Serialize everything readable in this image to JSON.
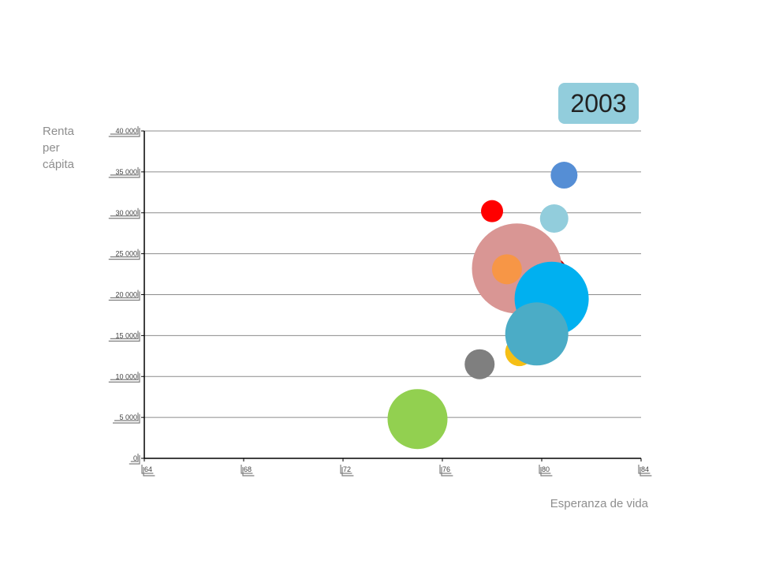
{
  "chart_data": {
    "type": "scatter",
    "year_label": "2003",
    "xlabel": "Esperanza de vida",
    "ylabel": "Renta per cápita",
    "xlim": [
      64,
      84
    ],
    "ylim": [
      0,
      40000
    ],
    "x_ticks": [
      64,
      68,
      72,
      76,
      80,
      84
    ],
    "x_tick_labels": [
      "64",
      "68",
      "72",
      "76",
      "80",
      "84"
    ],
    "y_ticks": [
      0,
      5000,
      10000,
      15000,
      20000,
      25000,
      30000,
      35000,
      40000
    ],
    "y_tick_labels": [
      "0",
      "5 000",
      "10 000",
      "15 000",
      "20 000",
      "25 000",
      "30 000",
      "35 000",
      "40 000"
    ],
    "grid": "horizontal",
    "badge_color": "#92cddc",
    "points": [
      {
        "x": 75.0,
        "y": 4800,
        "size": 38,
        "color": "#92d050"
      },
      {
        "x": 77.5,
        "y": 11500,
        "size": 19,
        "color": "#7f7f7f"
      },
      {
        "x": 79.1,
        "y": 13000,
        "size": 18,
        "color": "#f5bf16"
      },
      {
        "x": 80.3,
        "y": 22400,
        "size": 24,
        "color": "#c00000"
      },
      {
        "x": 79.0,
        "y": 23200,
        "size": 57,
        "color": "#d99694"
      },
      {
        "x": 78.6,
        "y": 23100,
        "size": 19,
        "color": "#f79646"
      },
      {
        "x": 78.0,
        "y": 30200,
        "size": 14,
        "color": "#ff0000"
      },
      {
        "x": 80.5,
        "y": 29300,
        "size": 18,
        "color": "#92cddc"
      },
      {
        "x": 80.9,
        "y": 34600,
        "size": 17,
        "color": "#558ed5"
      },
      {
        "x": 80.4,
        "y": 19500,
        "size": 47,
        "color": "#00b0f0"
      },
      {
        "x": 79.8,
        "y": 15200,
        "size": 40,
        "color": "#4bacc6"
      }
    ]
  }
}
